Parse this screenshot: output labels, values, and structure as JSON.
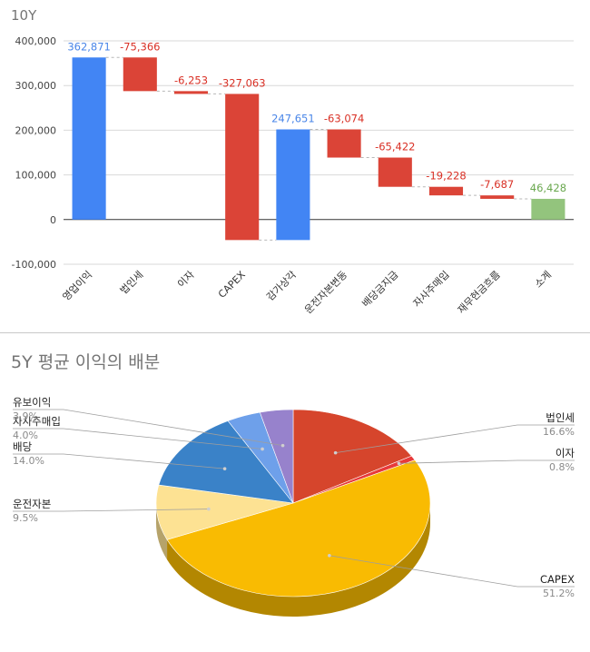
{
  "chart_data": [
    {
      "type": "waterfall",
      "title": "10Y",
      "ylim": [
        -100000,
        400000
      ],
      "yticks": [
        -100000,
        0,
        100000,
        200000,
        300000,
        400000
      ],
      "ytick_labels": [
        "-100,000",
        "0",
        "100,000",
        "200,000",
        "300,000",
        "400,000"
      ],
      "grid": true,
      "bars": [
        {
          "category": "영업이익",
          "value": 362871,
          "label": "362,871",
          "kind": "total"
        },
        {
          "category": "법인세",
          "value": -75366,
          "label": "-75,366",
          "kind": "delta"
        },
        {
          "category": "이자",
          "value": -6253,
          "label": "-6,253",
          "kind": "delta"
        },
        {
          "category": "CAPEX",
          "value": -327063,
          "label": "-327,063",
          "kind": "delta"
        },
        {
          "category": "감가상각",
          "value": 247651,
          "label": "247,651",
          "kind": "increase"
        },
        {
          "category": "운전자본변동",
          "value": -63074,
          "label": "-63,074",
          "kind": "delta"
        },
        {
          "category": "배당금지급",
          "value": -65422,
          "label": "-65,422",
          "kind": "delta"
        },
        {
          "category": "자사주매입",
          "value": -19228,
          "label": "-19,228",
          "kind": "delta"
        },
        {
          "category": "재무현금흐름",
          "value": -7687,
          "label": "-7,687",
          "kind": "delta"
        },
        {
          "category": "소계",
          "value": 46428,
          "label": "46,428",
          "kind": "subtotal"
        }
      ],
      "colors": {
        "increase": "#4285f4",
        "decrease": "#db4437",
        "subtotal": "#93c47d"
      }
    },
    {
      "type": "pie",
      "title": "5Y 평균 이익의 배분",
      "slices": [
        {
          "name": "법인세",
          "pct": 16.6,
          "label": "16.6%",
          "color": "#d6452c"
        },
        {
          "name": "이자",
          "pct": 0.8,
          "label": "0.8%",
          "color": "#e83a3a"
        },
        {
          "name": "CAPEX",
          "pct": 51.2,
          "label": "51.2%",
          "color": "#f9bb02"
        },
        {
          "name": "운전자본",
          "pct": 9.5,
          "label": "9.5%",
          "color": "#fde293"
        },
        {
          "name": "배당",
          "pct": 14.0,
          "label": "14.0%",
          "color": "#3a82c8"
        },
        {
          "name": "자사주매입",
          "pct": 4.0,
          "label": "4.0%",
          "color": "#6ea0ea"
        },
        {
          "name": "유보이익",
          "pct": 3.9,
          "label": "3.9%",
          "color": "#9782cc"
        }
      ],
      "style": "3d"
    }
  ]
}
